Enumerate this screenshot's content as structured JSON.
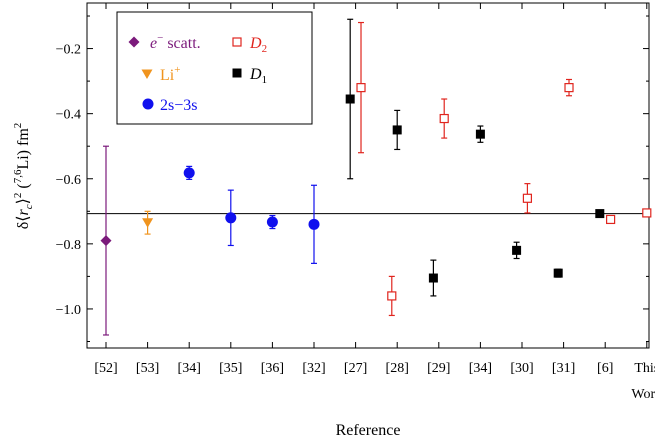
{
  "chart_data": {
    "type": "scatter",
    "title": "",
    "xlabel": "Reference",
    "ylabel": "δ⟨r_c⟩² (7,6Li) fm²",
    "ylabel_parts": {
      "delta": "δ",
      "open": "⟨",
      "r": "r",
      "sub_c": "c",
      "close": "⟩",
      "sup_2": "2",
      "paren_open": " (",
      "sup_76": "7,6",
      "li": "Li) fm",
      "sup_2b": "2"
    },
    "ylim": [
      -1.12,
      -0.06
    ],
    "yticks": [
      -1.0,
      -0.8,
      -0.6,
      -0.4,
      -0.2
    ],
    "ytick_labels": [
      "−1.0",
      "−0.8",
      "−0.6",
      "−0.4",
      "−0.2"
    ],
    "categories": [
      "[52]",
      "[53]",
      "[34]",
      "[35]",
      "[36]",
      "[32]",
      "[27]",
      "[28]",
      "[29]",
      "[34]",
      "[30]",
      "[31]",
      "[6]",
      "This"
    ],
    "category_second_line": [
      "",
      "",
      "",
      "",
      "",
      "",
      "",
      "",
      "",
      "",
      "",
      "",
      "",
      "Work"
    ],
    "reference_line": -0.707,
    "grid": false,
    "legend_position": "top-left",
    "series": [
      {
        "name": "e⁻ scatt.",
        "label_main": "e",
        "label_sup": "−",
        "label_rest": " scatt.",
        "marker": "diamond",
        "color": "#7b1a7b",
        "points": [
          {
            "x": 0,
            "y": -0.79,
            "err": 0.29
          }
        ]
      },
      {
        "name": "Li⁺",
        "label_main": "Li",
        "label_sup": "+",
        "label_rest": "",
        "marker": "triangle-down",
        "color": "#f0941e",
        "points": [
          {
            "x": 1,
            "y": -0.735,
            "err": 0.035
          }
        ]
      },
      {
        "name": "2s−3s",
        "label_main": "2s−3s",
        "label_sup": "",
        "label_rest": "",
        "marker": "circle",
        "color": "#1010ee",
        "points": [
          {
            "x": 2,
            "y": -0.582,
            "err": 0.02
          },
          {
            "x": 3,
            "y": -0.72,
            "err": 0.085
          },
          {
            "x": 4,
            "y": -0.733,
            "err": 0.02
          },
          {
            "x": 5,
            "y": -0.74,
            "err": 0.12
          }
        ]
      },
      {
        "name": "D2",
        "label_main": "D",
        "label_sub": "2",
        "marker": "square-open",
        "color": "#e0251e",
        "points": [
          {
            "x": 6,
            "y": -0.32,
            "err": 0.2,
            "offset": 0.13
          },
          {
            "x": 7,
            "y": -0.96,
            "err": 0.06,
            "offset": -0.13
          },
          {
            "x": 8,
            "y": -0.415,
            "err": 0.06,
            "offset": 0.13
          },
          {
            "x": 10,
            "y": -0.66,
            "err": 0.045,
            "offset": 0.13
          },
          {
            "x": 11,
            "y": -0.32,
            "err": 0.025,
            "offset": 0.13
          },
          {
            "x": 12,
            "y": -0.725,
            "err": 0.01,
            "offset": 0.13
          },
          {
            "x": 13,
            "y": -0.705,
            "err": 0.01,
            "offset": 0.0
          }
        ]
      },
      {
        "name": "D1",
        "label_main": "D",
        "label_sub": "1",
        "marker": "square",
        "color": "#000000",
        "points": [
          {
            "x": 6,
            "y": -0.355,
            "err": 0.245,
            "offset": -0.13
          },
          {
            "x": 7,
            "y": -0.45,
            "err": 0.06,
            "offset": 0.0
          },
          {
            "x": 8,
            "y": -0.905,
            "err": 0.055,
            "offset": -0.13
          },
          {
            "x": 9,
            "y": -0.463,
            "err": 0.025,
            "offset": 0.0
          },
          {
            "x": 10,
            "y": -0.82,
            "err": 0.025,
            "offset": -0.13
          },
          {
            "x": 11,
            "y": -0.89,
            "err": 0.012,
            "offset": -0.13
          },
          {
            "x": 12,
            "y": -0.707,
            "err": 0.008,
            "offset": -0.13
          }
        ]
      }
    ]
  }
}
